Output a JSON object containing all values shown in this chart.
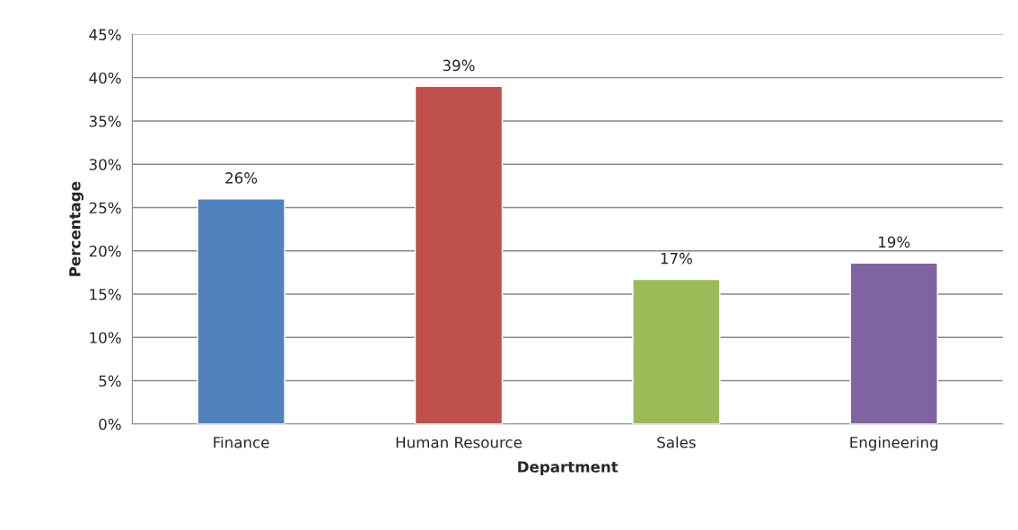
{
  "chart_data": {
    "type": "bar",
    "xlabel": "Department",
    "ylabel": "Percentage",
    "categories": [
      "Finance",
      "Human Resource",
      "Sales",
      "Engineering"
    ],
    "values": [
      26,
      39,
      16.7,
      18.6
    ],
    "value_labels": [
      "26%",
      "39%",
      "17%",
      "19%"
    ],
    "colors": [
      "#4f81bd",
      "#c0504d",
      "#9bbb59",
      "#8064a2"
    ],
    "ylim": [
      0,
      45
    ],
    "yticks": [
      {
        "value": 0,
        "label": "0%"
      },
      {
        "value": 5,
        "label": "5%"
      },
      {
        "value": 10,
        "label": "10%"
      },
      {
        "value": 15,
        "label": "15%"
      },
      {
        "value": 20,
        "label": "20%"
      },
      {
        "value": 25,
        "label": "25%"
      },
      {
        "value": 30,
        "label": "30%"
      },
      {
        "value": 35,
        "label": "35%"
      },
      {
        "value": 40,
        "label": "40%"
      },
      {
        "value": 45,
        "label": "45%"
      }
    ],
    "grid": "y",
    "legend": false
  }
}
